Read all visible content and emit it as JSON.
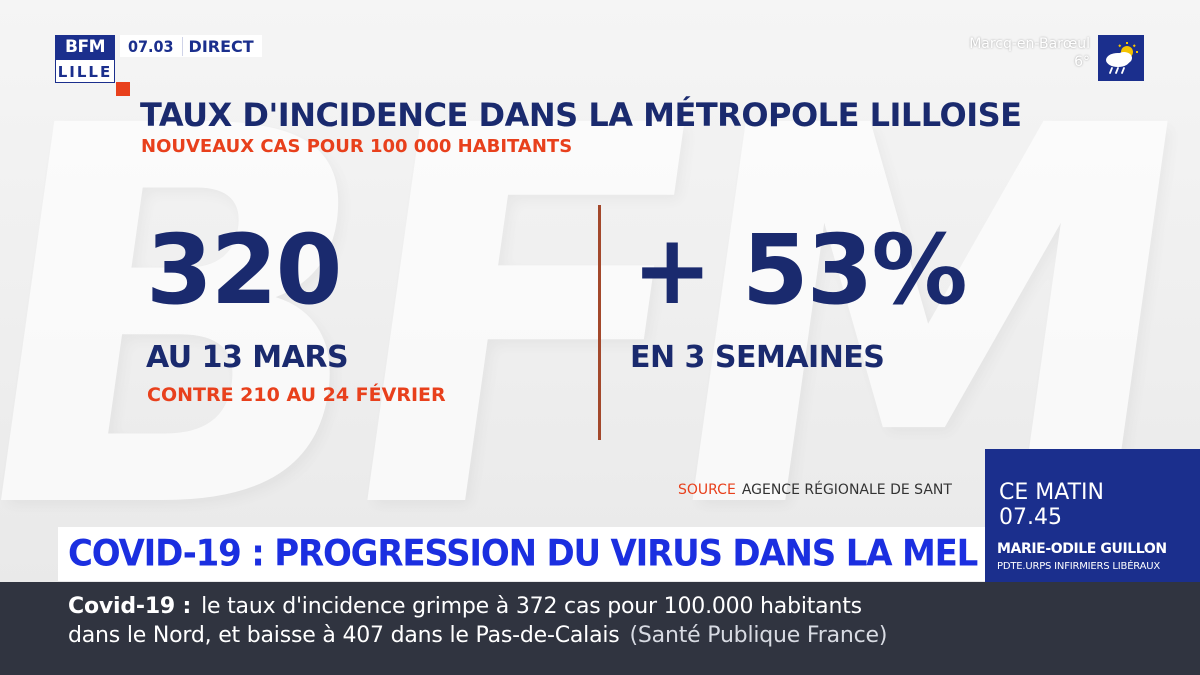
{
  "channel": {
    "logo_top": "BFM",
    "logo_bottom": "LILLE",
    "time": "07.03",
    "live_label": "DIRECT"
  },
  "weather": {
    "city": "Marcq-en-Barœul",
    "temperature": "6°",
    "icon": "cloud-sun-rain-icon"
  },
  "graphic": {
    "title": "TAUX D'INCIDENCE DANS LA MÉTROPOLE LILLOISE",
    "subtitle": "NOUVEAUX CAS POUR 100 000 HABITANTS",
    "left": {
      "value": "320",
      "label": "AU 13 MARS",
      "note": "CONTRE 210 AU 24 FÉVRIER"
    },
    "right": {
      "value": "+ 53%",
      "label": "EN 3 SEMAINES"
    },
    "source_label": "SOURCE",
    "source_text": "AGENCE RÉGIONALE DE SANT"
  },
  "guest": {
    "show": "CE MATIN",
    "time": "07.45",
    "name": "MARIE-ODILE GUILLON",
    "role": "PDTE.URPS INFIRMIERS LIBÉRAUX"
  },
  "headline": "COVID-19 : PROGRESSION DU VIRUS DANS LA MEL",
  "ticker": {
    "keyword": "Covid-19  :",
    "line1": "le taux d'incidence grimpe à 372 cas pour 100.000 habitants",
    "line2": "dans le Nord, et baisse à 407 dans le Pas-de-Calais",
    "source": "(Santé Publique France)"
  },
  "colors": {
    "brand_blue": "#1b2f8d",
    "navy_text": "#1a2a6e",
    "accent_red": "#e8401c",
    "headline_blue": "#1b2fe0",
    "ticker_bg": "#303440"
  }
}
